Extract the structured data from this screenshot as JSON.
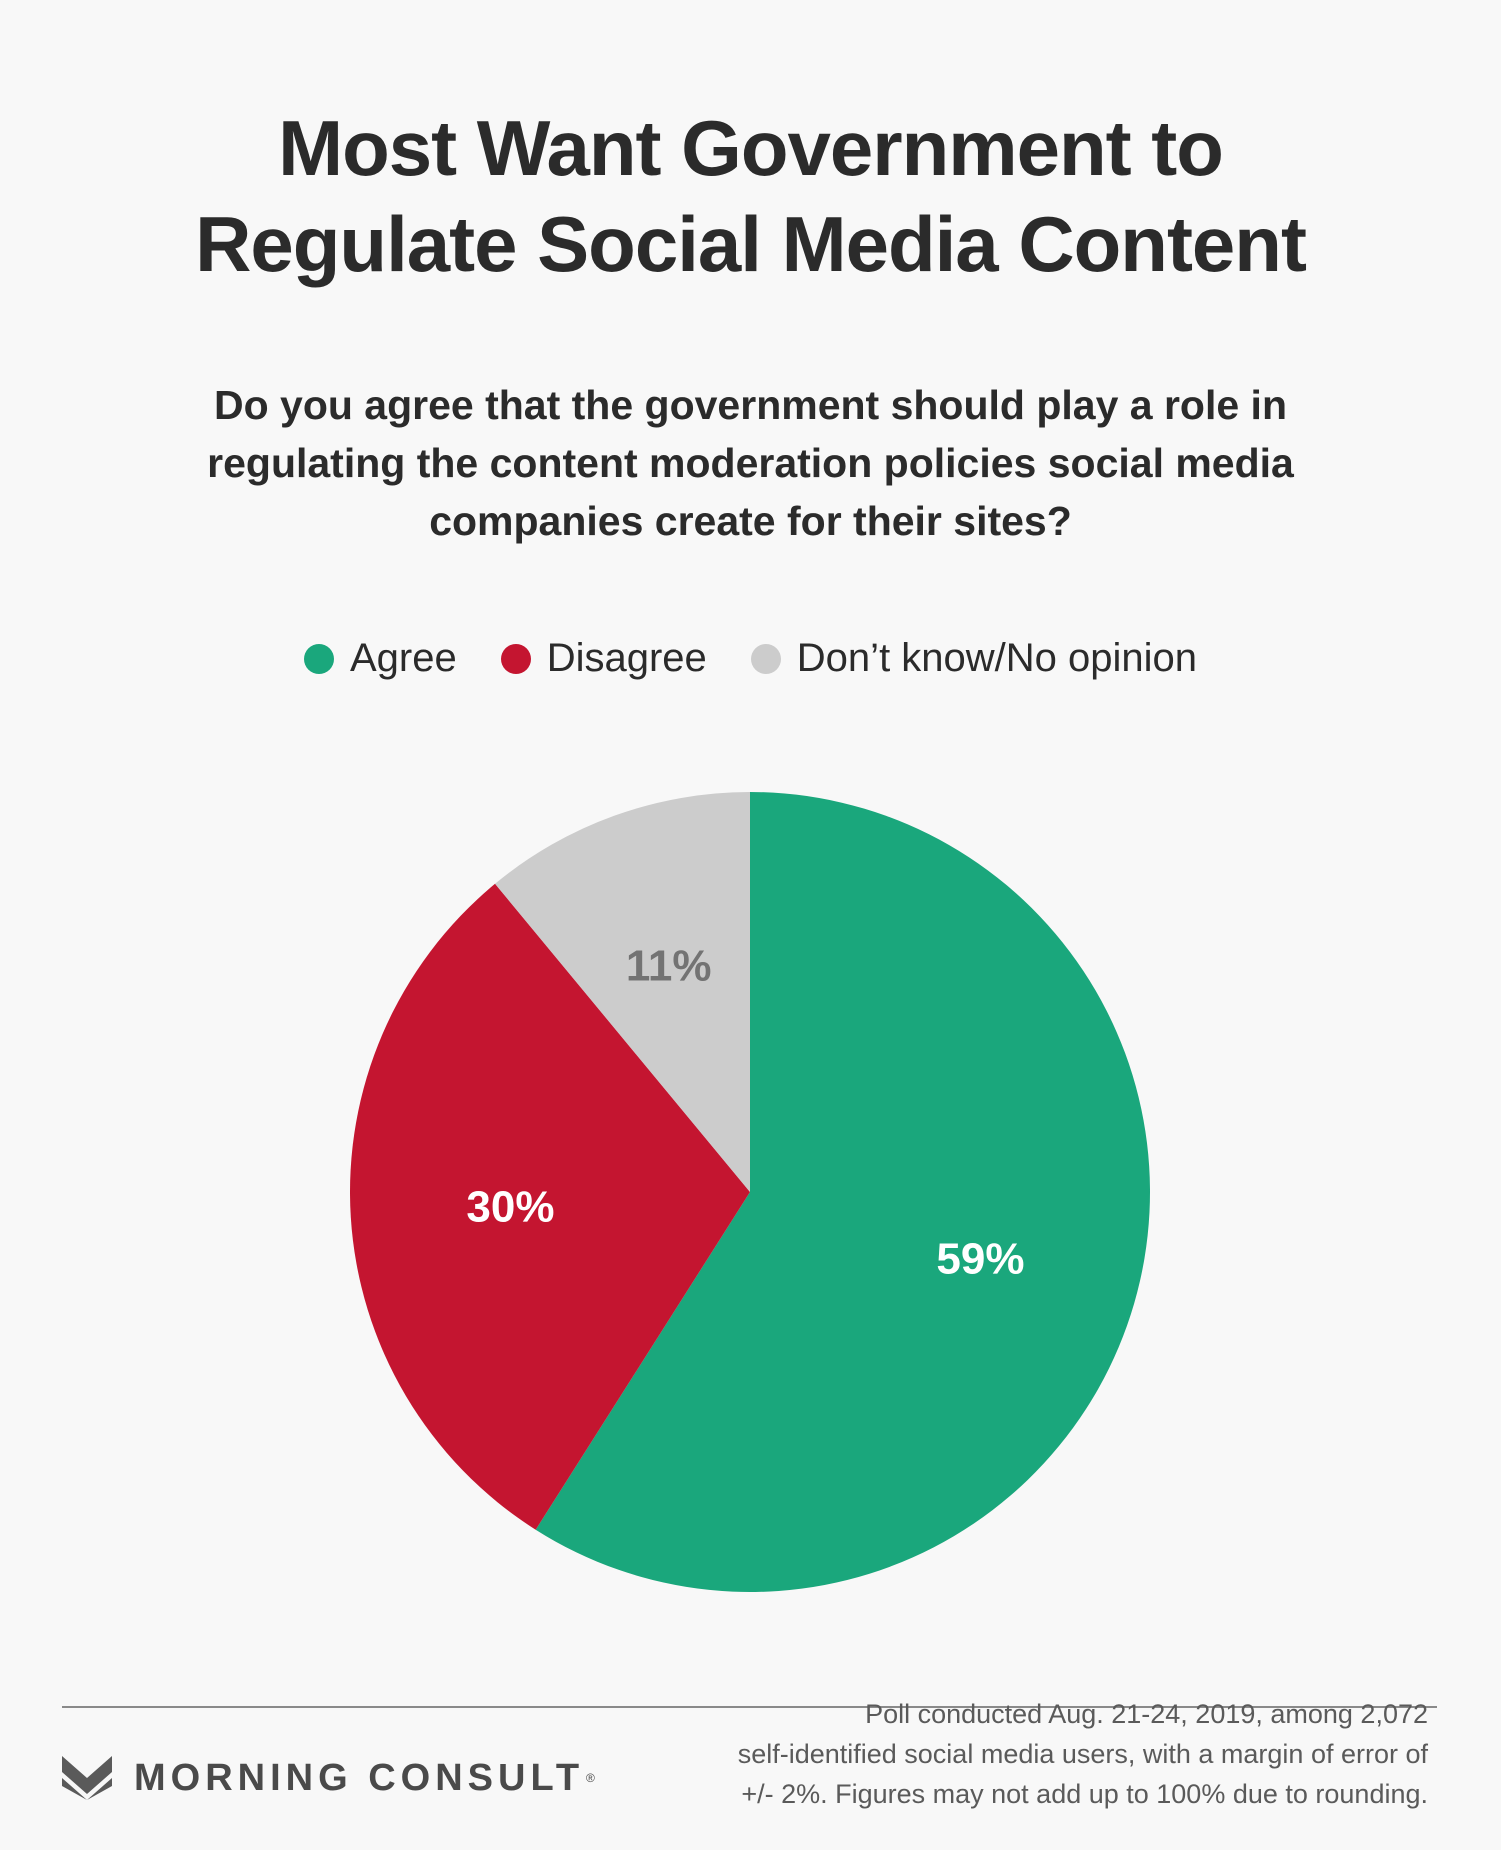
{
  "header": {
    "title_line1": "Most Want Government to",
    "title_line2": "Regulate Social Media Content",
    "question": "Do you agree that the government should play a role in regulating the content moderation policies social media companies create for their sites?"
  },
  "legend": [
    {
      "label": "Agree",
      "color": "#1aa77c"
    },
    {
      "label": "Disagree",
      "color": "#c41530"
    },
    {
      "label": "Don’t know/No opinion",
      "color": "#cccccc"
    }
  ],
  "chart_data": {
    "type": "pie",
    "slices": [
      {
        "name": "Agree",
        "value": 59,
        "label": "59%",
        "color": "#1aa77c",
        "label_color": "#ffffff"
      },
      {
        "name": "Disagree",
        "value": 30,
        "label": "30%",
        "color": "#c41530",
        "label_color": "#ffffff"
      },
      {
        "name": "Don’t know/No opinion",
        "value": 11,
        "label": "11%",
        "color": "#cccccc",
        "label_color": "#737373"
      }
    ],
    "start": "12 o'clock, clockwise"
  },
  "footer": {
    "brand": "MORNING CONSULT",
    "brand_mark": "®",
    "note_line1": "Poll conducted Aug. 21-24, 2019, among 2,072",
    "note_line2": "self-identified social media users, with a margin of error of",
    "note_line3": "+/- 2%. Figures may not add up to 100% due to rounding."
  }
}
